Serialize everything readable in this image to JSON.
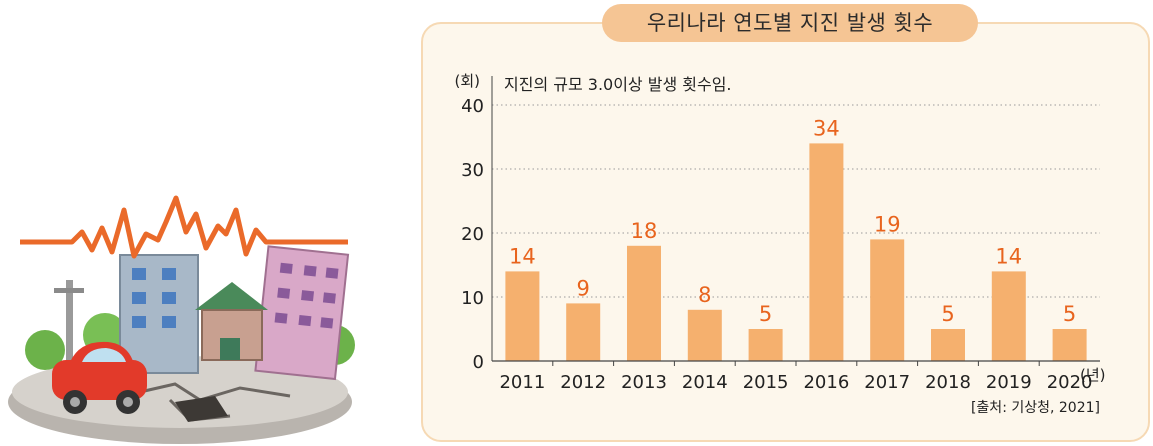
{
  "chart_data": {
    "type": "bar",
    "title": "우리나라 연도별 지진 발생 횟수",
    "note": "지진의 규모 3.0이상 발생 횟수임.",
    "ylabel": "(회)",
    "xlabel": "(년)",
    "categories": [
      "2011",
      "2012",
      "2013",
      "2014",
      "2015",
      "2016",
      "2017",
      "2018",
      "2019",
      "2020"
    ],
    "values": [
      14,
      9,
      18,
      8,
      5,
      34,
      19,
      5,
      14,
      5
    ],
    "ylim": [
      0,
      40
    ],
    "yticks": [
      0,
      10,
      20,
      30,
      40
    ],
    "grid": true,
    "bar_color": "#f5b06e",
    "label_color": "#e8641e",
    "source": "[출처: 기상청,  2021]"
  },
  "illustration": {
    "icon": "earthquake-illustration"
  }
}
